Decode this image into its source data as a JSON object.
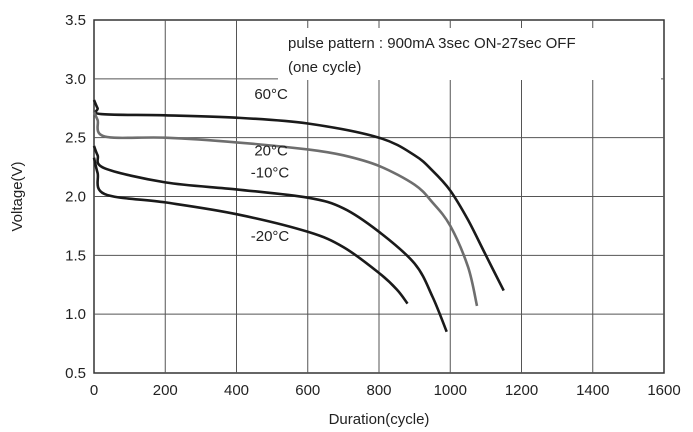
{
  "chart_data": {
    "type": "line",
    "title": "",
    "xlabel": "Duration(cycle)",
    "ylabel": "Voltage(V)",
    "xlim": [
      0,
      1600
    ],
    "ylim": [
      0.5,
      3.5
    ],
    "x_ticks": [
      0,
      200,
      400,
      600,
      800,
      1000,
      1200,
      1400,
      1600
    ],
    "y_ticks": [
      0.5,
      1.0,
      1.5,
      2.0,
      2.5,
      3.0,
      3.5
    ],
    "x_tick_labels": [
      "0",
      "200",
      "400",
      "600",
      "800",
      "1000",
      "1200",
      "1400",
      "1600"
    ],
    "y_tick_labels": [
      "0.5",
      "1.0",
      "1.5",
      "2.0",
      "2.5",
      "3.0",
      "3.5"
    ],
    "grid": true,
    "annotation": [
      "pulse pattern : 900mA 3sec ON-27sec OFF",
      "(one cycle)"
    ],
    "series": [
      {
        "name": "60°C",
        "color": "#1a1a1a",
        "points": [
          [
            0,
            2.82
          ],
          [
            10,
            2.75
          ],
          [
            20,
            2.7
          ],
          [
            200,
            2.69
          ],
          [
            400,
            2.67
          ],
          [
            600,
            2.62
          ],
          [
            800,
            2.5
          ],
          [
            900,
            2.35
          ],
          [
            950,
            2.22
          ],
          [
            1000,
            2.05
          ],
          [
            1050,
            1.8
          ],
          [
            1100,
            1.5
          ],
          [
            1150,
            1.2
          ]
        ]
      },
      {
        "name": "20°C",
        "color": "#6e6e6e",
        "points": [
          [
            0,
            2.72
          ],
          [
            10,
            2.65
          ],
          [
            30,
            2.51
          ],
          [
            200,
            2.5
          ],
          [
            400,
            2.46
          ],
          [
            600,
            2.4
          ],
          [
            700,
            2.35
          ],
          [
            800,
            2.26
          ],
          [
            900,
            2.1
          ],
          [
            950,
            1.95
          ],
          [
            1000,
            1.75
          ],
          [
            1050,
            1.4
          ],
          [
            1075,
            1.07
          ]
        ]
      },
      {
        "name": "-10°C",
        "color": "#1a1a1a",
        "points": [
          [
            0,
            2.43
          ],
          [
            10,
            2.35
          ],
          [
            30,
            2.24
          ],
          [
            200,
            2.12
          ],
          [
            400,
            2.06
          ],
          [
            600,
            1.99
          ],
          [
            700,
            1.9
          ],
          [
            800,
            1.7
          ],
          [
            900,
            1.43
          ],
          [
            950,
            1.15
          ],
          [
            990,
            0.85
          ]
        ]
      },
      {
        "name": "-20°C",
        "color": "#1a1a1a",
        "points": [
          [
            0,
            2.33
          ],
          [
            10,
            2.2
          ],
          [
            30,
            2.02
          ],
          [
            200,
            1.95
          ],
          [
            400,
            1.85
          ],
          [
            600,
            1.7
          ],
          [
            700,
            1.57
          ],
          [
            800,
            1.35
          ],
          [
            850,
            1.21
          ],
          [
            880,
            1.09
          ]
        ]
      }
    ],
    "series_labels": [
      {
        "text": "60°C",
        "x": 450,
        "y": 2.83
      },
      {
        "text": "20°C",
        "x": 450,
        "y": 2.35
      },
      {
        "text": "-10°C",
        "x": 440,
        "y": 2.16
      },
      {
        "text": "-20°C",
        "x": 440,
        "y": 1.62
      }
    ]
  }
}
